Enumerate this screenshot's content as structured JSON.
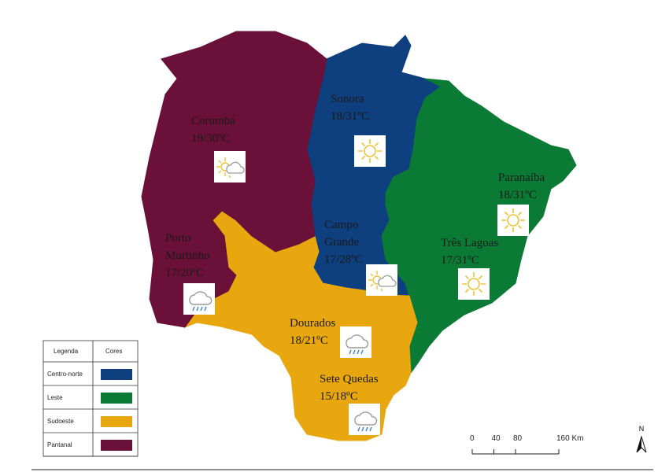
{
  "legend": {
    "title": "Legenda",
    "column": "Cores"
  },
  "regions": [
    {
      "name": "Centro-norte",
      "color": "#0e3f7e"
    },
    {
      "name": "Leste",
      "color": "#0b7a35"
    },
    {
      "name": "Sudoeste",
      "color": "#e8a70f"
    },
    {
      "name": "Pantanal",
      "color": "#6b1039"
    }
  ],
  "cities": [
    {
      "name": [
        "Corumbá"
      ],
      "temp": "19/30ºC"
    },
    {
      "name": [
        "Sonora"
      ],
      "temp": "18/31ºC"
    },
    {
      "name": [
        "Paranaíba"
      ],
      "temp": "18/31ºC"
    },
    {
      "name": [
        "Porto",
        "Murtinho"
      ],
      "temp": "17/20ºC"
    },
    {
      "name": [
        "Campo",
        "Grande"
      ],
      "temp": "17/28ºC"
    },
    {
      "name": [
        "Três Lagoas"
      ],
      "temp": "17/31ºC"
    },
    {
      "name": [
        "Dourados"
      ],
      "temp": "18/21ºC"
    },
    {
      "name": [
        "Sete Quedas"
      ],
      "temp": "15/18ºC"
    }
  ],
  "scale": {
    "ticks": [
      0,
      40,
      80,
      {
        "value": 160,
        "label": "160 Km"
      }
    ]
  },
  "north": "N"
}
